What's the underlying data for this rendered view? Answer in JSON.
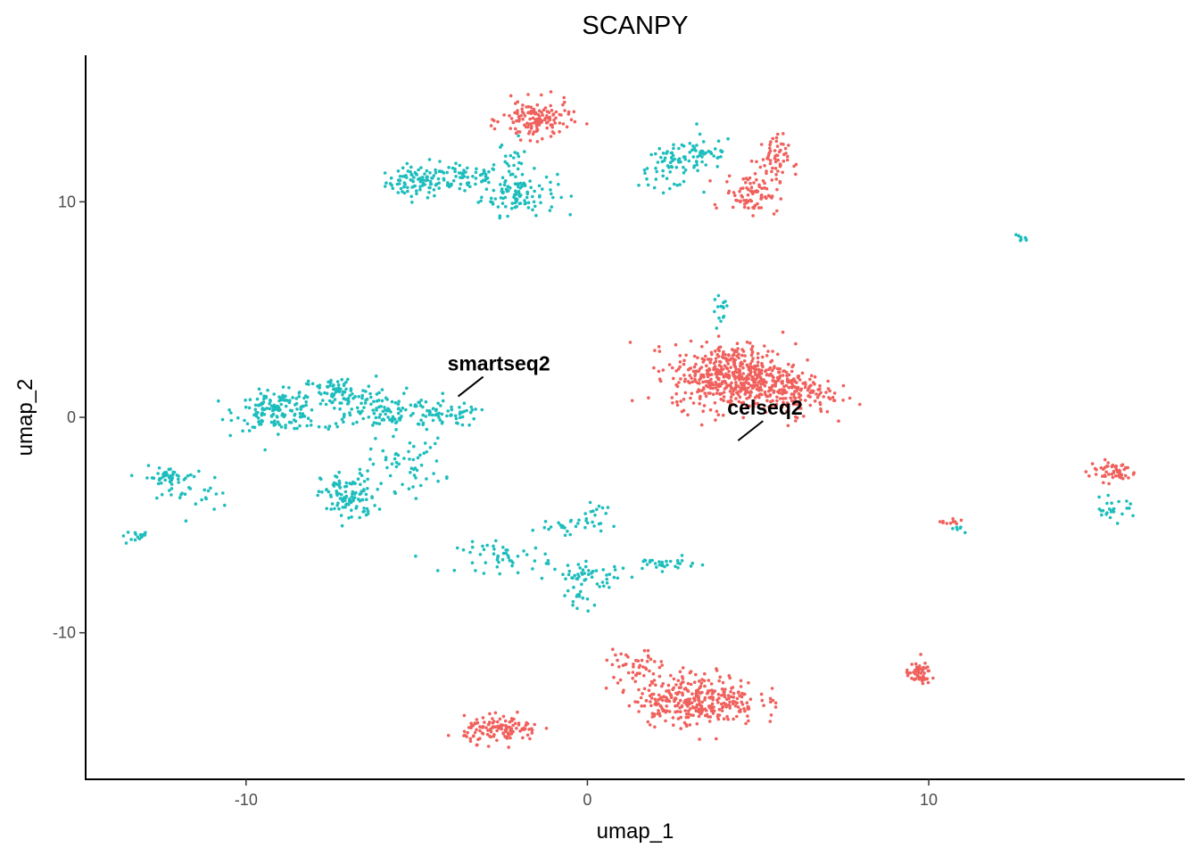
{
  "chart_data": {
    "type": "scatter",
    "title": "SCANPY",
    "xlabel": "umap_1",
    "ylabel": "umap_2",
    "xlim": [
      -14.7,
      17.5
    ],
    "ylim": [
      -16.8,
      16.8
    ],
    "xticks": [
      -10,
      0,
      10
    ],
    "yticks": [
      -10,
      0,
      10
    ],
    "grid": false,
    "legend": "none",
    "colors": {
      "smartseq2": "#1ebdbd",
      "celseq2": "#f0605c"
    },
    "annotations": [
      {
        "text": "smartseq2",
        "x": -4.1,
        "y": 2.5
      },
      {
        "text": "celseq2",
        "x": 4.1,
        "y": 0.45
      }
    ],
    "series": [
      {
        "name": "smartseq2",
        "color": "#1ebdbd",
        "clusters": [
          {
            "cx": -5.0,
            "cy": 10.9,
            "sx": 0.45,
            "sy": 0.35,
            "n": 80
          },
          {
            "cx": -3.8,
            "cy": 11.2,
            "sx": 0.7,
            "sy": 0.35,
            "n": 70
          },
          {
            "cx": -2.0,
            "cy": 10.4,
            "sx": 0.55,
            "sy": 0.5,
            "n": 110
          },
          {
            "cx": -2.2,
            "cy": 11.9,
            "sx": 0.2,
            "sy": 0.5,
            "n": 20
          },
          {
            "cx": 2.4,
            "cy": 11.6,
            "sx": 0.45,
            "sy": 0.45,
            "n": 60
          },
          {
            "cx": 3.4,
            "cy": 12.3,
            "sx": 0.45,
            "sy": 0.4,
            "n": 45
          },
          {
            "cx": 12.7,
            "cy": 8.3,
            "sx": 0.15,
            "sy": 0.12,
            "n": 8
          },
          {
            "cx": 3.9,
            "cy": 4.8,
            "sx": 0.12,
            "sy": 0.45,
            "n": 15
          },
          {
            "cx": -9.1,
            "cy": 0.3,
            "sx": 0.6,
            "sy": 0.45,
            "n": 150
          },
          {
            "cx": -7.3,
            "cy": 1.1,
            "sx": 0.55,
            "sy": 0.4,
            "n": 80
          },
          {
            "cx": -6.0,
            "cy": 0.3,
            "sx": 1.1,
            "sy": 0.45,
            "n": 130
          },
          {
            "cx": -4.2,
            "cy": 0.1,
            "sx": 0.5,
            "sy": 0.25,
            "n": 40
          },
          {
            "cx": -7.0,
            "cy": -3.7,
            "sx": 0.4,
            "sy": 0.6,
            "n": 110
          },
          {
            "cx": -5.3,
            "cy": -2.2,
            "sx": 0.55,
            "sy": 0.6,
            "n": 55
          },
          {
            "cx": -12.3,
            "cy": -2.8,
            "sx": 0.35,
            "sy": 0.25,
            "n": 45
          },
          {
            "cx": -11.5,
            "cy": -3.5,
            "sx": 0.5,
            "sy": 0.5,
            "n": 25
          },
          {
            "cx": -13.1,
            "cy": -5.5,
            "sx": 0.3,
            "sy": 0.12,
            "n": 15
          },
          {
            "cx": -2.4,
            "cy": -6.5,
            "sx": 0.7,
            "sy": 0.35,
            "n": 50
          },
          {
            "cx": 0.1,
            "cy": -7.4,
            "sx": 0.6,
            "sy": 0.3,
            "n": 50
          },
          {
            "cx": -0.6,
            "cy": -5.0,
            "sx": 0.5,
            "sy": 0.2,
            "n": 30
          },
          {
            "cx": 0.3,
            "cy": -4.4,
            "sx": 0.2,
            "sy": 0.2,
            "n": 10
          },
          {
            "cx": -0.2,
            "cy": -8.5,
            "sx": 0.15,
            "sy": 0.3,
            "n": 12
          },
          {
            "cx": 2.2,
            "cy": -6.8,
            "sx": 0.5,
            "sy": 0.15,
            "n": 30
          },
          {
            "cx": 15.4,
            "cy": -4.3,
            "sx": 0.35,
            "sy": 0.25,
            "n": 25
          },
          {
            "cx": 10.9,
            "cy": -5.1,
            "sx": 0.15,
            "sy": 0.1,
            "n": 6
          }
        ]
      },
      {
        "name": "celseq2",
        "color": "#f0605c",
        "clusters": [
          {
            "cx": -1.5,
            "cy": 13.8,
            "sx": 0.5,
            "sy": 0.45,
            "n": 140
          },
          {
            "cx": 4.8,
            "cy": 10.4,
            "sx": 0.4,
            "sy": 0.45,
            "n": 80
          },
          {
            "cx": 5.4,
            "cy": 11.9,
            "sx": 0.25,
            "sy": 0.6,
            "n": 60
          },
          {
            "cx": 4.3,
            "cy": 1.9,
            "sx": 0.9,
            "sy": 0.75,
            "n": 520
          },
          {
            "cx": 6.0,
            "cy": 1.1,
            "sx": 0.6,
            "sy": 0.5,
            "n": 140
          },
          {
            "cx": 15.4,
            "cy": -2.5,
            "sx": 0.35,
            "sy": 0.25,
            "n": 55
          },
          {
            "cx": 10.6,
            "cy": -4.9,
            "sx": 0.25,
            "sy": 0.1,
            "n": 10
          },
          {
            "cx": 9.7,
            "cy": -11.9,
            "sx": 0.18,
            "sy": 0.25,
            "n": 55
          },
          {
            "cx": 3.2,
            "cy": -13.1,
            "sx": 0.9,
            "sy": 0.6,
            "n": 340
          },
          {
            "cx": 1.4,
            "cy": -11.5,
            "sx": 0.45,
            "sy": 0.35,
            "n": 45
          },
          {
            "cx": -2.5,
            "cy": -14.5,
            "sx": 0.55,
            "sy": 0.3,
            "n": 130
          }
        ]
      }
    ]
  }
}
